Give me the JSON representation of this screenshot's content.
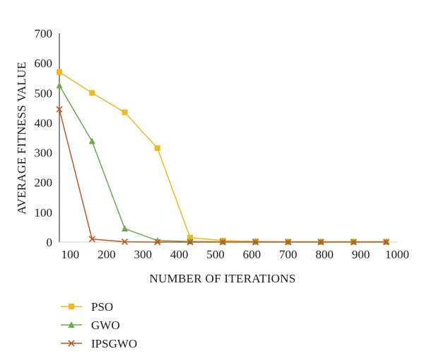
{
  "chart_data": {
    "type": "line",
    "xlabel": "NUMBER OF ITERATIONS",
    "ylabel": "AVERAGE FITNESS VALUE",
    "xlim": [
      70,
      1000
    ],
    "ylim": [
      0,
      700
    ],
    "x_ticks": [
      "100",
      "200",
      "300",
      "400",
      "500",
      "600",
      "700",
      "800",
      "900",
      "1000"
    ],
    "y_ticks": [
      "0",
      "100",
      "200",
      "300",
      "400",
      "500",
      "600",
      "700"
    ],
    "grid": false,
    "legend_position": "bottom-left",
    "x": [
      70,
      160,
      250,
      340,
      430,
      520,
      610,
      700,
      790,
      880,
      970
    ],
    "series": [
      {
        "name": "PSO",
        "color": "#f2b81c",
        "marker": "square",
        "values": [
          570,
          500,
          435,
          315,
          15,
          5,
          2,
          1,
          1,
          1,
          1
        ]
      },
      {
        "name": "GWO",
        "color": "#6aac46",
        "marker": "triangle",
        "values": [
          525,
          338,
          45,
          5,
          2,
          1,
          1,
          1,
          1,
          1,
          1
        ]
      },
      {
        "name": "IPSGWO",
        "color": "#c0561f",
        "marker": "x",
        "values": [
          445,
          10,
          1,
          0,
          0,
          0,
          0,
          0,
          0,
          0,
          0
        ]
      }
    ]
  }
}
